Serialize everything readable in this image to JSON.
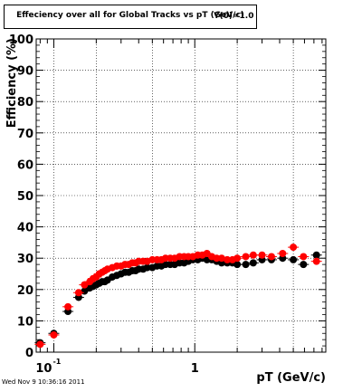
{
  "title": "Effeciency over all for Global Tracks vs pT (GeV/c)",
  "title_overlay": "Y(0)=1.0",
  "timestamp": "Wed Nov  9 10:36:16 2011",
  "colors": {
    "series_black": "#000000",
    "series_red": "#ff0000",
    "grid": "#000000"
  },
  "chart_data": {
    "type": "scatter",
    "title": "Effeciency over all for Global Tracks vs pT (GeV/c)",
    "xlabel": "pT (GeV/c)",
    "ylabel": "Efficiency (%)",
    "xscale": "log",
    "xlim": [
      0.075,
      8.5
    ],
    "ylim": [
      0,
      100
    ],
    "grid": true,
    "legend": "none",
    "x_tick_labels": [
      {
        "x": 0.1,
        "base": "10",
        "exp": "-1"
      },
      {
        "x": 1,
        "base": "1",
        "exp": ""
      }
    ],
    "y_ticks": [
      0,
      10,
      20,
      30,
      40,
      50,
      60,
      70,
      80,
      90,
      100
    ],
    "x_grid": [
      0.1,
      0.2,
      0.5,
      1,
      2,
      5
    ],
    "series": [
      {
        "color": "#000000",
        "x": [
          0.08,
          0.1,
          0.126,
          0.15,
          0.165,
          0.18,
          0.19,
          0.2,
          0.21,
          0.22,
          0.23,
          0.24,
          0.26,
          0.28,
          0.3,
          0.32,
          0.34,
          0.36,
          0.38,
          0.4,
          0.43,
          0.46,
          0.5,
          0.54,
          0.58,
          0.62,
          0.67,
          0.72,
          0.78,
          0.84,
          0.9,
          0.97,
          1.05,
          1.13,
          1.22,
          1.32,
          1.43,
          1.55,
          1.7,
          1.85,
          2.0,
          2.3,
          2.6,
          3.0,
          3.5,
          4.2,
          5.0,
          5.9,
          7.3
        ],
        "y": [
          3,
          6,
          13,
          17.5,
          19.5,
          20.5,
          21,
          21.5,
          22,
          22.5,
          22.5,
          23,
          24,
          24.5,
          25,
          25.5,
          25.5,
          26,
          26,
          26.5,
          26.5,
          27,
          27,
          27.5,
          27.5,
          28,
          28,
          28,
          28.5,
          28.5,
          29,
          29.5,
          29.5,
          30,
          29.5,
          29.5,
          29,
          28.5,
          28.5,
          28.5,
          28,
          28,
          28.5,
          29.5,
          29.5,
          30,
          29.5,
          28,
          31
        ]
      },
      {
        "color": "#ff0000",
        "x": [
          0.08,
          0.1,
          0.126,
          0.15,
          0.165,
          0.18,
          0.19,
          0.2,
          0.21,
          0.22,
          0.23,
          0.24,
          0.26,
          0.28,
          0.3,
          0.32,
          0.34,
          0.36,
          0.38,
          0.4,
          0.43,
          0.46,
          0.5,
          0.54,
          0.58,
          0.62,
          0.67,
          0.72,
          0.78,
          0.84,
          0.9,
          0.97,
          1.05,
          1.13,
          1.22,
          1.32,
          1.43,
          1.55,
          1.7,
          1.85,
          2.0,
          2.3,
          2.6,
          3.0,
          3.5,
          4.2,
          5.0,
          5.9,
          7.3
        ],
        "y": [
          2.5,
          5.5,
          14.5,
          19,
          21.5,
          22.5,
          23.5,
          24,
          25,
          25.5,
          26,
          26.5,
          27,
          27.5,
          27.5,
          28,
          28,
          28.5,
          28.5,
          29,
          29,
          29,
          29.5,
          29.5,
          29.5,
          30,
          30,
          30,
          30.5,
          30.5,
          30.5,
          30.5,
          31,
          31,
          31.5,
          30.5,
          30,
          30,
          29.5,
          29.5,
          30,
          30.5,
          31,
          31,
          30.5,
          31.5,
          33.5,
          30.5,
          29
        ]
      }
    ]
  }
}
